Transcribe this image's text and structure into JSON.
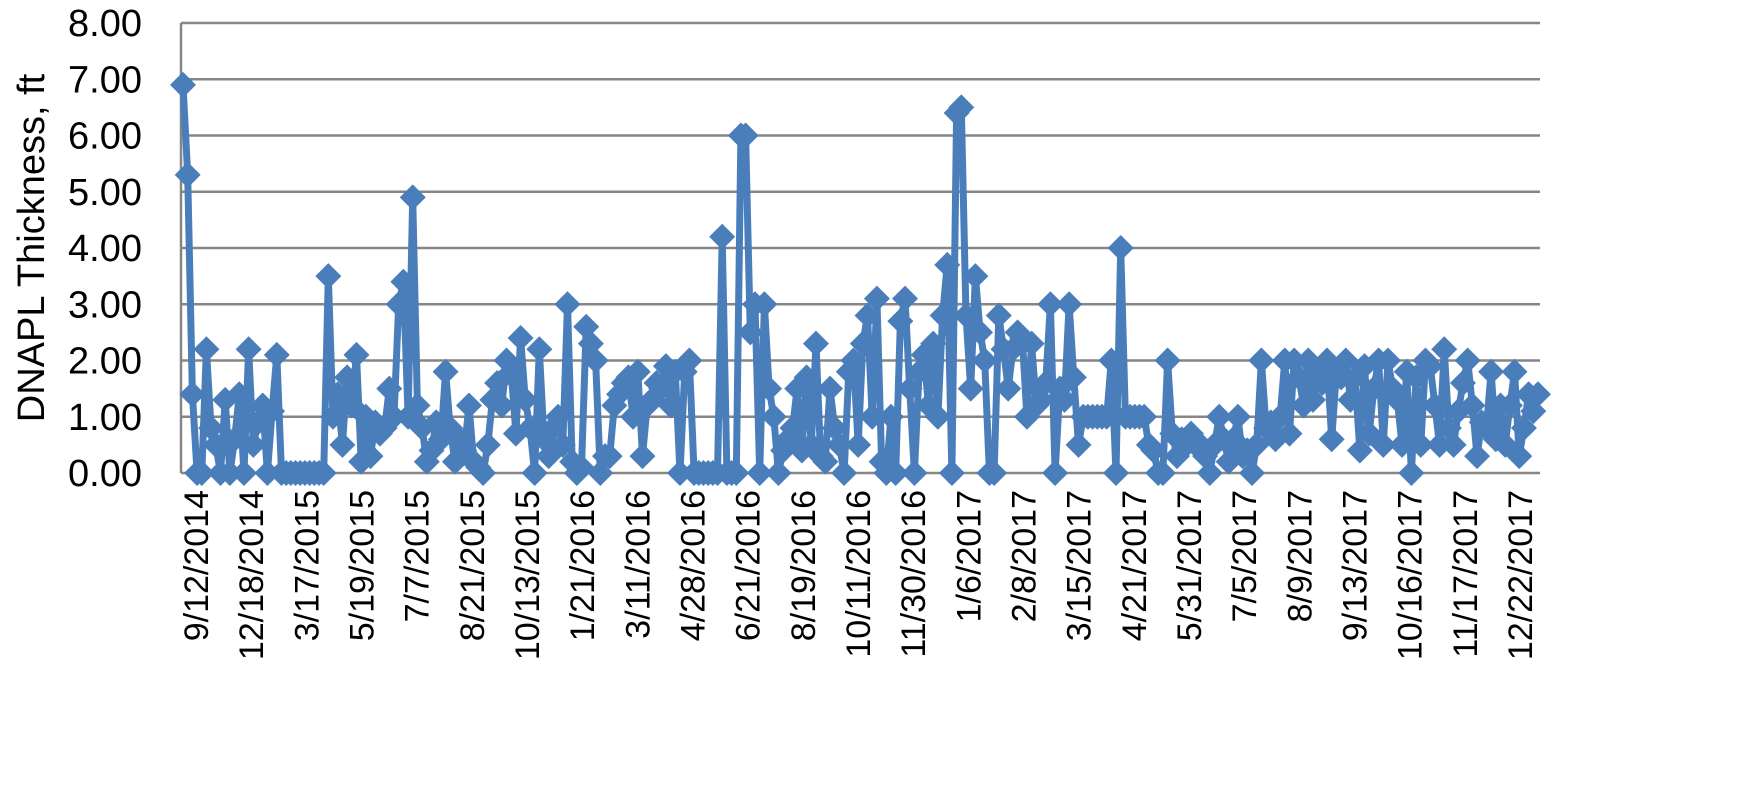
{
  "chart_data": {
    "type": "line",
    "title": "",
    "xlabel": "",
    "ylabel": "DNAPL Thickness, ft",
    "ylim": [
      0,
      8
    ],
    "y_ticks": [
      "0.00",
      "1.00",
      "2.00",
      "3.00",
      "4.00",
      "5.00",
      "6.00",
      "7.00",
      "8.00"
    ],
    "x_tick_labels": [
      "9/12/2014",
      "12/18/2014",
      "3/17/2015",
      "5/19/2015",
      "7/7/2015",
      "8/21/2015",
      "10/13/2015",
      "1/21/2016",
      "3/11/2016",
      "4/28/2016",
      "6/21/2016",
      "8/19/2016",
      "10/11/2016",
      "11/30/2016",
      "1/6/2017",
      "2/8/2017",
      "3/15/2017",
      "4/21/2017",
      "5/31/2017",
      "7/5/2017",
      "8/9/2017",
      "9/13/2017",
      "10/16/2017",
      "11/17/2017",
      "12/22/2017"
    ],
    "grid": true,
    "legend": "none",
    "colors": {
      "series": "#4a7ebb",
      "grid": "#868686"
    },
    "series": [
      {
        "values": [
          6.9,
          5.3,
          1.4,
          0,
          0,
          2.2,
          0.8,
          0.5,
          0,
          1.3,
          0,
          0.6,
          1.4,
          0,
          2.2,
          0.5,
          0.9,
          1.2,
          0,
          1.1,
          2.1,
          0,
          0,
          0,
          0,
          0,
          0,
          0,
          0,
          0,
          0,
          3.5,
          1.0,
          1.4,
          0.5,
          1.7,
          1.2,
          2.1,
          0.2,
          1.0,
          0.3,
          0.9,
          0.7,
          0.8,
          1.5,
          1.0,
          3.0,
          3.4,
          1.0,
          4.9,
          1.2,
          0.8,
          0.2,
          0.4,
          0.9,
          0.6,
          1.8,
          0.8,
          0.2,
          0.6,
          0.4,
          1.2,
          0.2,
          0.1,
          0,
          0.5,
          1.3,
          1.6,
          1.2,
          2.0,
          1.8,
          0.7,
          2.4,
          1.3,
          0.8,
          0,
          2.2,
          0.6,
          0.3,
          0.8,
          1.0,
          0.5,
          3.0,
          0.2,
          0,
          0.1,
          2.6,
          2.3,
          2.0,
          0,
          0.3,
          0.3,
          1.2,
          1.4,
          1.6,
          1.7,
          1.0,
          1.8,
          0.3,
          1.2,
          1.3,
          1.6,
          1.5,
          1.9,
          1.2,
          1.8,
          0,
          1.8,
          2.0,
          0,
          0,
          0,
          0,
          0,
          0,
          4.2,
          0,
          0,
          0,
          6.0,
          6.0,
          2.5,
          3.0,
          0,
          3.0,
          1.5,
          1.0,
          0,
          0.4,
          0.6,
          0.8,
          1.5,
          0.4,
          1.7,
          0.5,
          2.3,
          0.3,
          0.2,
          1.5,
          0.8,
          0.5,
          0,
          1.8,
          2.0,
          0.5,
          2.3,
          2.8,
          1.0,
          3.1,
          0.2,
          0,
          1.0,
          0,
          2.7,
          3.1,
          1.5,
          0,
          1.8,
          2.1,
          1.2,
          2.3,
          1.0,
          2.8,
          3.7,
          0,
          6.4,
          6.5,
          2.8,
          1.5,
          3.5,
          2.5,
          2.0,
          0,
          0,
          2.8,
          2.2,
          1.5,
          2.2,
          2.5,
          2.4,
          1.0,
          2.3,
          1.2,
          1.3,
          1.6,
          3.0,
          0,
          1.5,
          1.3,
          3.0,
          1.7,
          0.5,
          1.0,
          1.0,
          1.0,
          1.0,
          1.0,
          1.0,
          2.0,
          0,
          4.0,
          1.0,
          1.0,
          1.0,
          1.0,
          1.0,
          0.5,
          0.4,
          0,
          0,
          2.0,
          0.7,
          0.3,
          0.6,
          0.5,
          0.7,
          0.5,
          0.5,
          0.3,
          0,
          0.5,
          1.0,
          0.6,
          0.2,
          0.6,
          1.0,
          0.3,
          0.4,
          0,
          0.5,
          2.0,
          0.8,
          0.9,
          0.6,
          1.0,
          2.0,
          0.7,
          2.0,
          1.7,
          1.2,
          2.0,
          1.3,
          1.8,
          1.6,
          2.0,
          0.6,
          1.8,
          1.7,
          2.0,
          1.3,
          1.7,
          0.4,
          1.9,
          0.7,
          1.5,
          2.0,
          0.5,
          2.0,
          1.5,
          1.3,
          0.5,
          1.8,
          0,
          1.7,
          0.5,
          2.0,
          1.9,
          1.2,
          0.5,
          2.2,
          0.8,
          0.5,
          1.1,
          1.6,
          2.0,
          1.2,
          0.3,
          0.9,
          0.8,
          1.8,
          0.6,
          1.2,
          0.5,
          1.2,
          1.8,
          0.3,
          0.8,
          1.4,
          1.1,
          1.4
        ]
      }
    ]
  }
}
